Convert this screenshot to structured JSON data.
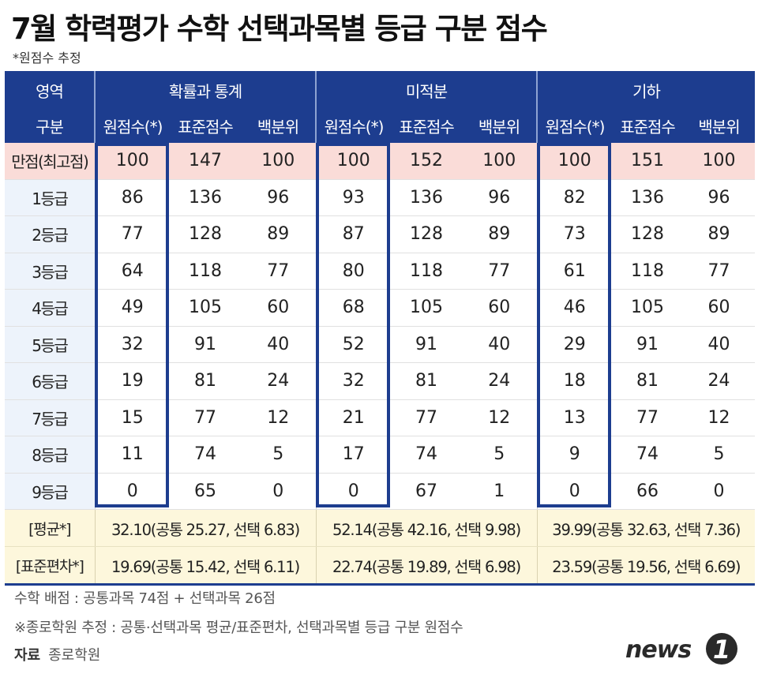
{
  "title": "7월 학력평가 수학 선택과목별 등급 구분 점수",
  "note": "*원점수 추정",
  "chart_data": {
    "type": "table",
    "header_area_label": "영역",
    "header_row_label": "구분",
    "subjects": [
      "확률과 통계",
      "미적분",
      "기하"
    ],
    "subcolumns": [
      "원점수(*)",
      "표준점수",
      "백분위"
    ],
    "rows": [
      {
        "label": "만점(최고점)",
        "values": [
          "100",
          "147",
          "100",
          "100",
          "152",
          "100",
          "100",
          "151",
          "100"
        ]
      },
      {
        "label": "1등급",
        "values": [
          "86",
          "136",
          "96",
          "93",
          "136",
          "96",
          "82",
          "136",
          "96"
        ]
      },
      {
        "label": "2등급",
        "values": [
          "77",
          "128",
          "89",
          "87",
          "128",
          "89",
          "73",
          "128",
          "89"
        ]
      },
      {
        "label": "3등급",
        "values": [
          "64",
          "118",
          "77",
          "80",
          "118",
          "77",
          "61",
          "118",
          "77"
        ]
      },
      {
        "label": "4등급",
        "values": [
          "49",
          "105",
          "60",
          "68",
          "105",
          "60",
          "46",
          "105",
          "60"
        ]
      },
      {
        "label": "5등급",
        "values": [
          "32",
          "91",
          "40",
          "52",
          "91",
          "40",
          "29",
          "91",
          "40"
        ]
      },
      {
        "label": "6등급",
        "values": [
          "19",
          "81",
          "24",
          "32",
          "81",
          "24",
          "18",
          "81",
          "24"
        ]
      },
      {
        "label": "7등급",
        "values": [
          "15",
          "77",
          "12",
          "21",
          "77",
          "12",
          "13",
          "77",
          "12"
        ]
      },
      {
        "label": "8등급",
        "values": [
          "11",
          "74",
          "5",
          "17",
          "74",
          "5",
          "9",
          "74",
          "5"
        ]
      },
      {
        "label": "9등급",
        "values": [
          "0",
          "65",
          "0",
          "0",
          "67",
          "1",
          "0",
          "66",
          "0"
        ]
      }
    ],
    "summary_rows": [
      {
        "label": "[평균*]",
        "values": [
          "32.10(공통 25.27, 선택 6.83)",
          "52.14(공통 42.16, 선택 9.98)",
          "39.99(공통 32.63, 선택 7.36)"
        ]
      },
      {
        "label": "[표준편차*]",
        "values": [
          "19.69(공통 15.42, 선택 6.11)",
          "22.74(공통 19.89, 선택 6.98)",
          "23.59(공통 19.56, 선택 6.69)"
        ]
      }
    ]
  },
  "footnotes": [
    "수학 배점 : 공통과목 74점 + 선택과목 26점",
    "※종로학원 추정 : 공통·선택과목 평균/표준편차, 선택과목별 등급 구분 원점수"
  ],
  "source_label": "자료",
  "source_value": "종로학원",
  "logo_text": "news1",
  "colors": {
    "header": "#1d3d8f",
    "label_col": "#edf3fb",
    "full_row": "#fadcd8",
    "summary": "#fdf7dc"
  }
}
